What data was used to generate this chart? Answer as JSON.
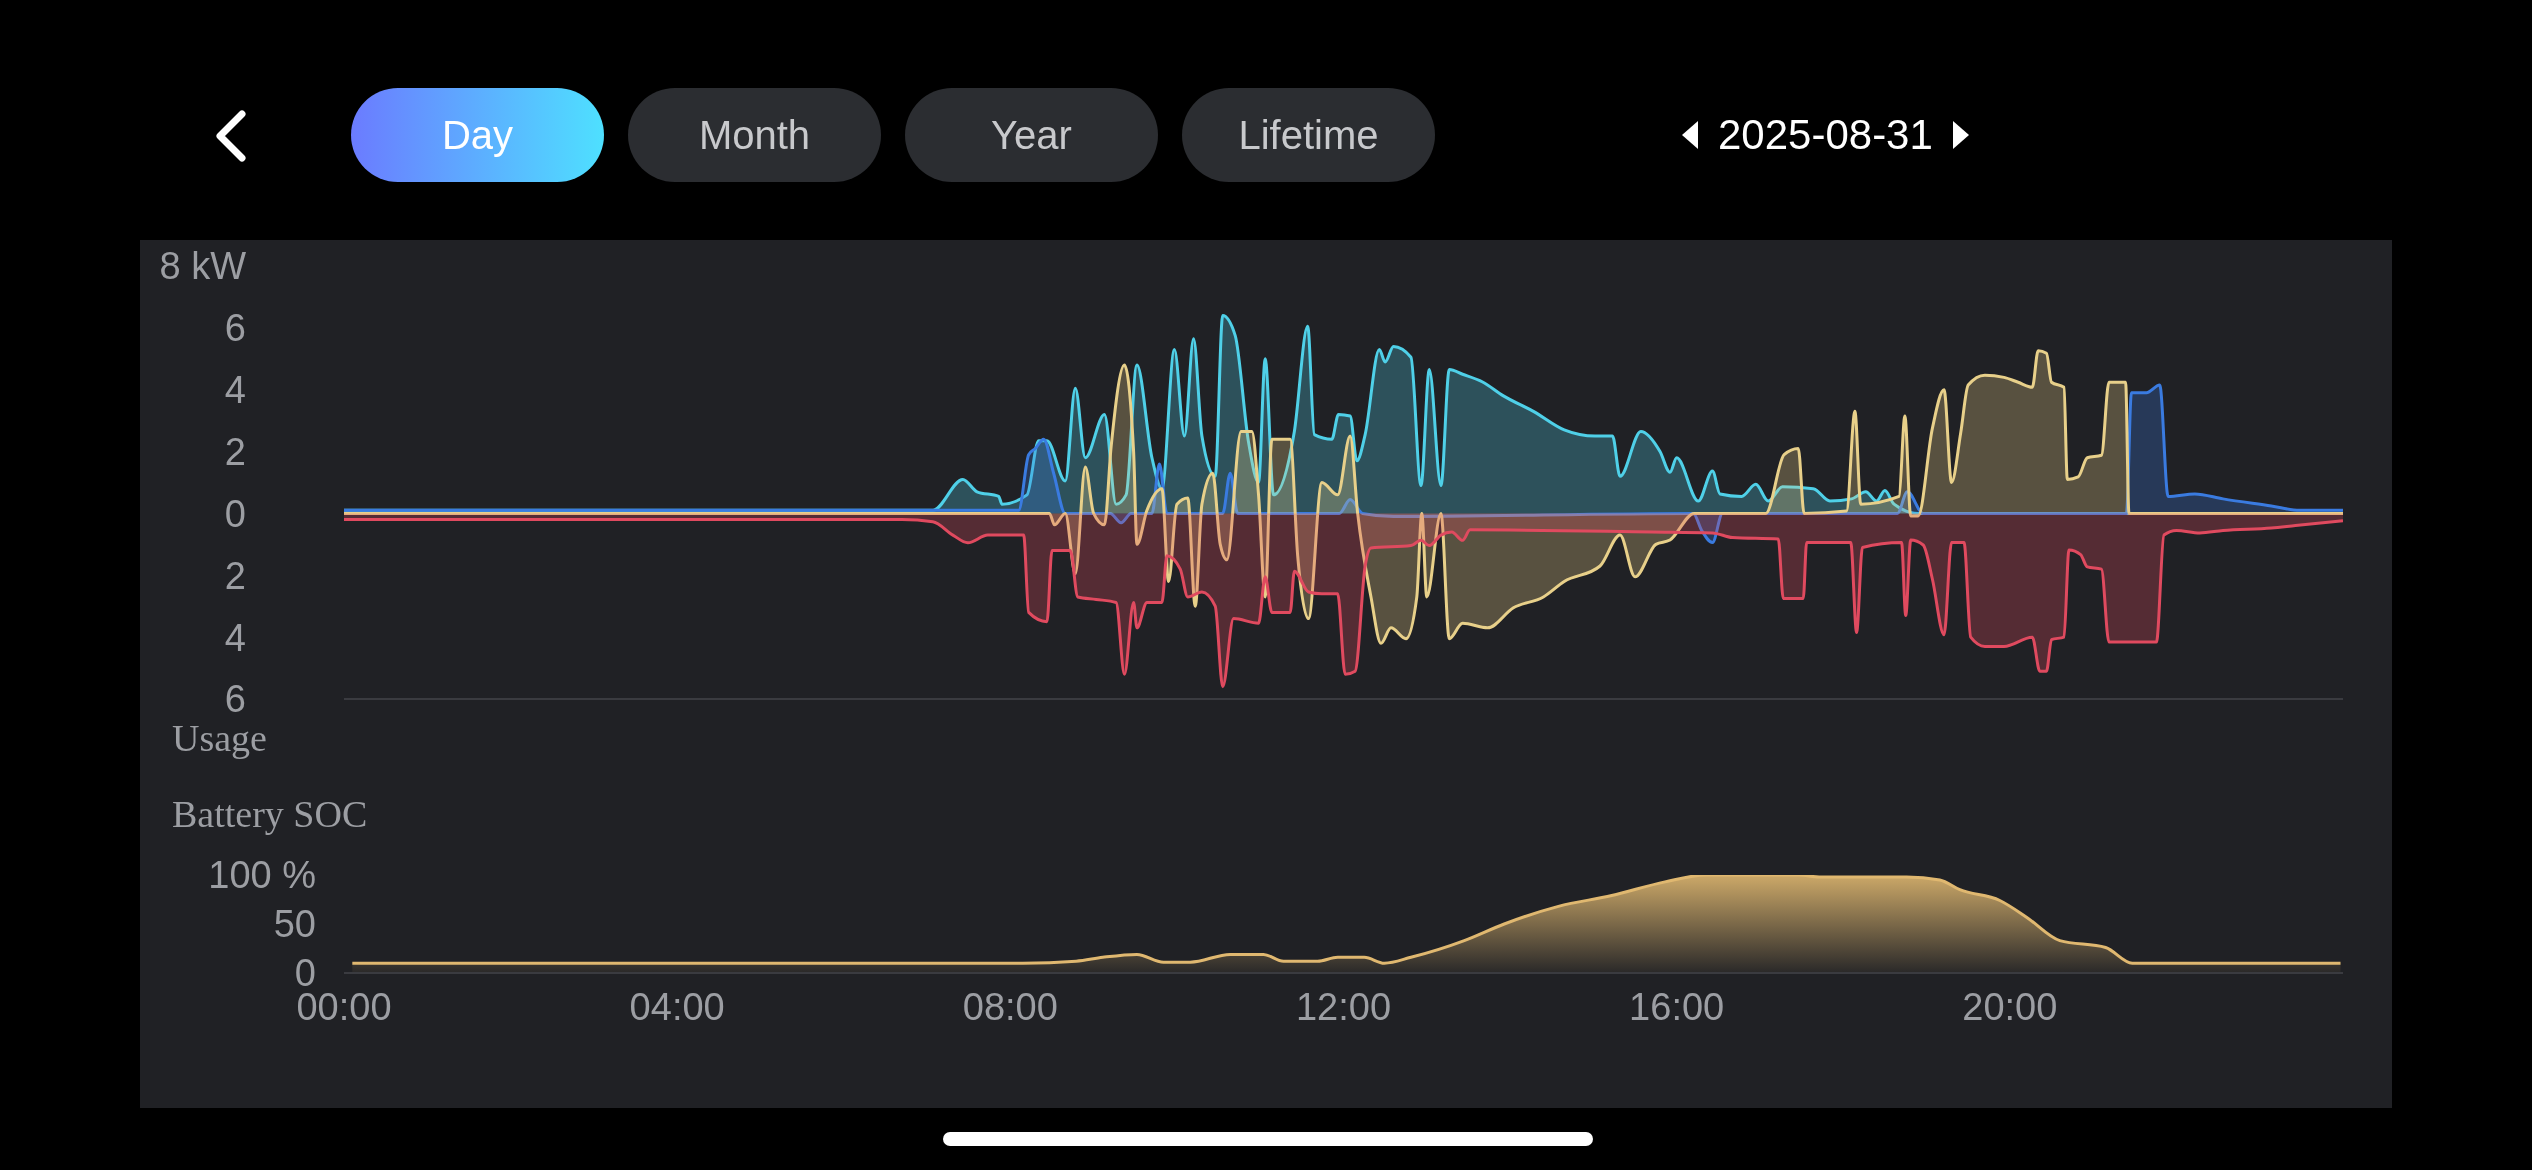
{
  "chart_data": [
    {
      "type": "area",
      "title": "Usage",
      "annotations": [
        "Day",
        "Month",
        "Year",
        "Lifetime",
        "2025-08-31"
      ],
      "xlim": [
        0,
        24
      ],
      "ylim": [
        -6,
        8
      ],
      "yticks": [
        {
          "value": -6,
          "label": "6"
        },
        {
          "value": -4,
          "label": "4"
        },
        {
          "value": -2,
          "label": "2"
        },
        0,
        2,
        4,
        6,
        {
          "value": 8,
          "label": "8 kW"
        }
      ],
      "tick_labels": "y",
      "series": [
        {
          "color": "#4fd0e8",
          "x": [
            0,
            6.7,
            7.07,
            7.43,
            7.6,
            7.86,
            7.9,
            8.2,
            8.34,
            8.44,
            8.66,
            8.78,
            8.9,
            9.13,
            9.27,
            9.39,
            9.52,
            9.7,
            9.82,
            9.97,
            10.09,
            10.2,
            10.3,
            10.46,
            10.55,
            10.7,
            10.86,
            10.98,
            11.06,
            11.16,
            11.41,
            11.57,
            11.65,
            11.86,
            11.94,
            12.08,
            12.16,
            12.26,
            12.43,
            12.5,
            12.6,
            12.81,
            12.93,
            13.03,
            13.17,
            13.27,
            13.43,
            13.67,
            13.92,
            14.28,
            14.65,
            15.02,
            15.23,
            15.32,
            15.57,
            15.8,
            15.92,
            16.0,
            16.26,
            16.43,
            16.52,
            16.78,
            16.95,
            17.1,
            17.27,
            17.64,
            17.84,
            18.1,
            18.27,
            18.4,
            18.5,
            18.61,
            18.9,
            24
          ],
          "values": [
            0.1,
            0.1,
            0.1,
            1.1,
            0.7,
            0.55,
            0.3,
            0.6,
            2.35,
            2.35,
            1.05,
            4.05,
            1.8,
            3.2,
            0.3,
            0.6,
            4.8,
            1.8,
            0.8,
            5.3,
            2.5,
            5.65,
            2.5,
            1.2,
            6.4,
            5.75,
            2.3,
            1.0,
            5.0,
            0.6,
            2.65,
            6.05,
            2.55,
            2.4,
            3.2,
            3.15,
            1.7,
            2.55,
            5.3,
            4.9,
            5.4,
            5.05,
            0.9,
            4.65,
            0.9,
            4.65,
            4.5,
            4.25,
            3.8,
            3.3,
            2.7,
            2.5,
            2.5,
            1.2,
            2.65,
            2.0,
            1.33,
            1.8,
            0.4,
            1.37,
            0.63,
            0.55,
            0.94,
            0.4,
            0.86,
            0.8,
            0.4,
            0.47,
            0.7,
            0.4,
            0.74,
            0.3,
            0,
            0
          ]
        },
        {
          "color": "#3a7be0",
          "x": [
            0,
            8.1,
            8.22,
            8.3,
            8.4,
            8.52,
            8.66,
            9.2,
            9.33,
            9.45,
            9.7,
            9.79,
            9.88,
            10.55,
            10.64,
            10.73,
            11.95,
            12.08,
            12.23,
            12.6,
            16.2,
            16.3,
            16.43,
            16.55,
            18.65,
            18.77,
            18.96,
            21.4,
            21.46,
            21.64,
            21.8,
            21.9,
            22.22,
            22.56,
            23.14,
            23.48,
            24
          ],
          "values": [
            0.1,
            0.1,
            1.9,
            2.1,
            2.4,
            1.3,
            0,
            0,
            -0.3,
            0,
            0,
            1.6,
            0,
            0,
            1.3,
            0,
            0,
            0.45,
            0,
            -0.1,
            0,
            -0.55,
            -0.94,
            0,
            0,
            0.7,
            0,
            0,
            3.9,
            3.9,
            4.15,
            0.55,
            0.63,
            0.47,
            0.24,
            0.1,
            0.1
          ]
        },
        {
          "color": "#e8d08a",
          "x": [
            0,
            8.47,
            8.53,
            8.66,
            8.78,
            8.9,
            9.0,
            9.13,
            9.21,
            9.37,
            9.48,
            9.52,
            9.64,
            9.82,
            9.9,
            10.0,
            10.13,
            10.22,
            10.3,
            10.43,
            10.52,
            10.6,
            10.77,
            10.9,
            10.98,
            11.06,
            11.14,
            11.36,
            11.45,
            11.58,
            11.74,
            11.93,
            12.08,
            12.17,
            12.33,
            12.45,
            12.57,
            12.75,
            12.88,
            12.94,
            13.0,
            13.17,
            13.27,
            13.43,
            13.73,
            14.04,
            14.4,
            14.65,
            15.08,
            15.32,
            15.5,
            15.75,
            15.92,
            16.21,
            17.07,
            17.29,
            17.46,
            17.53,
            18.04,
            18.14,
            18.21,
            18.67,
            18.74,
            18.81,
            18.9,
            19.07,
            19.21,
            19.3,
            19.41,
            19.5,
            19.7,
            19.93,
            20.1,
            20.27,
            20.34,
            20.44,
            20.5,
            20.65,
            20.69,
            20.82,
            20.93,
            21.1,
            21.19,
            21.39,
            21.43,
            24
          ],
          "values": [
            0,
            0,
            -0.37,
            0,
            -1.95,
            1.5,
            0,
            -0.37,
            2.15,
            4.8,
            2.0,
            -1.0,
            0.1,
            0.8,
            -2.2,
            0.3,
            0.5,
            -3.0,
            0.3,
            1.3,
            -1.0,
            -1.5,
            2.65,
            2.65,
            0.6,
            -2.7,
            2.4,
            2.4,
            -1.37,
            -3.4,
            1.0,
            0.6,
            2.5,
            0,
            -2.7,
            -4.2,
            -3.7,
            -4.05,
            -2.7,
            0,
            -2.7,
            0,
            -4.05,
            -3.55,
            -3.7,
            -3.05,
            -2.7,
            -2.2,
            -1.7,
            -0.7,
            -2.05,
            -1.0,
            -0.86,
            0,
            0,
            1.9,
            2.1,
            0,
            0.08,
            3.3,
            0.3,
            0.55,
            3.15,
            -0.08,
            -0.08,
            2.75,
            4.0,
            1.0,
            2.6,
            4.15,
            4.47,
            4.4,
            4.24,
            4.08,
            5.26,
            5.18,
            4.24,
            4.08,
            1.1,
            1.18,
            1.8,
            1.88,
            4.24,
            4.24,
            0,
            0
          ]
        },
        {
          "color": "#e04a5f",
          "x": [
            0,
            6.7,
            7.07,
            7.31,
            7.49,
            7.73,
            8.16,
            8.22,
            8.44,
            8.5,
            8.72,
            8.81,
            9.03,
            9.27,
            9.37,
            9.48,
            9.52,
            9.64,
            9.82,
            9.88,
            10.04,
            10.13,
            10.3,
            10.46,
            10.55,
            10.68,
            10.98,
            11.06,
            11.14,
            11.36,
            11.41,
            11.58,
            11.74,
            11.93,
            12.02,
            12.14,
            12.26,
            12.33,
            12.81,
            12.93,
            13.03,
            13.17,
            13.3,
            13.43,
            13.52,
            15.7,
            16.43,
            16.67,
            17.22,
            17.28,
            17.52,
            17.56,
            18.09,
            18.16,
            18.23,
            18.7,
            18.75,
            18.81,
            18.96,
            19.07,
            19.21,
            19.3,
            19.45,
            19.53,
            19.7,
            19.93,
            20.27,
            20.36,
            20.44,
            20.5,
            20.65,
            20.71,
            20.85,
            20.93,
            21.1,
            21.19,
            21.76,
            21.85,
            22.0,
            22.28,
            22.56,
            23.14,
            23.43,
            24
          ],
          "values": [
            -0.2,
            -0.2,
            -0.27,
            -0.7,
            -0.95,
            -0.7,
            -0.7,
            -3.2,
            -3.5,
            -1.2,
            -1.2,
            -2.7,
            -2.78,
            -2.88,
            -5.2,
            -2.88,
            -3.7,
            -2.88,
            -2.88,
            -1.37,
            -1.8,
            -2.7,
            -2.54,
            -3.0,
            -5.6,
            -3.4,
            -3.55,
            -2.05,
            -3.2,
            -3.2,
            -1.87,
            -2.54,
            -2.6,
            -2.6,
            -5.2,
            -5.1,
            -1.7,
            -1.12,
            -1.04,
            -0.87,
            -1.04,
            -0.7,
            -0.6,
            -0.87,
            -0.53,
            -0.6,
            -0.63,
            -0.78,
            -0.83,
            -2.75,
            -2.75,
            -0.94,
            -0.94,
            -3.85,
            -1.1,
            -0.94,
            -3.3,
            -0.86,
            -1.02,
            -2.12,
            -3.92,
            -0.94,
            -0.94,
            -4.0,
            -4.3,
            -4.3,
            -4.0,
            -5.1,
            -5.1,
            -4.08,
            -4.0,
            -1.18,
            -1.33,
            -1.73,
            -1.8,
            -4.16,
            -4.16,
            -0.7,
            -0.55,
            -0.63,
            -0.55,
            -0.47,
            -0.39,
            -0.24
          ]
        }
      ]
    },
    {
      "type": "area",
      "title": "Battery SOC",
      "xlim": [
        0,
        24
      ],
      "xticks": [
        {
          "value": 0,
          "label": "00:00"
        },
        {
          "value": 4,
          "label": "04:00"
        },
        {
          "value": 8,
          "label": "08:00"
        },
        {
          "value": 12,
          "label": "12:00"
        },
        {
          "value": 16,
          "label": "16:00"
        },
        {
          "value": 20,
          "label": "20:00"
        }
      ],
      "ylim": [
        0,
        100
      ],
      "yticks": [
        0,
        50,
        {
          "value": 100,
          "label": "100 %"
        }
      ],
      "series": [
        {
          "color": "#e0b870",
          "x": [
            0.1,
            8.15,
            8.79,
            9.11,
            9.52,
            9.84,
            10.16,
            10.64,
            11.04,
            11.28,
            11.69,
            11.93,
            12.25,
            12.49,
            12.81,
            13.45,
            13.93,
            14.58,
            15.22,
            15.86,
            16.35,
            17.47,
            17.71,
            18.76,
            19.16,
            19.4,
            19.88,
            20.2,
            20.6,
            21.15,
            21.47,
            23.97
          ],
          "values": [
            10,
            10,
            12,
            16,
            19,
            11,
            11,
            19,
            19,
            12,
            12,
            16,
            16,
            10,
            16,
            33,
            50,
            68,
            79,
            93,
            100,
            100,
            98,
            98,
            95,
            85,
            74,
            57,
            33,
            26,
            10,
            10
          ]
        }
      ]
    }
  ]
}
